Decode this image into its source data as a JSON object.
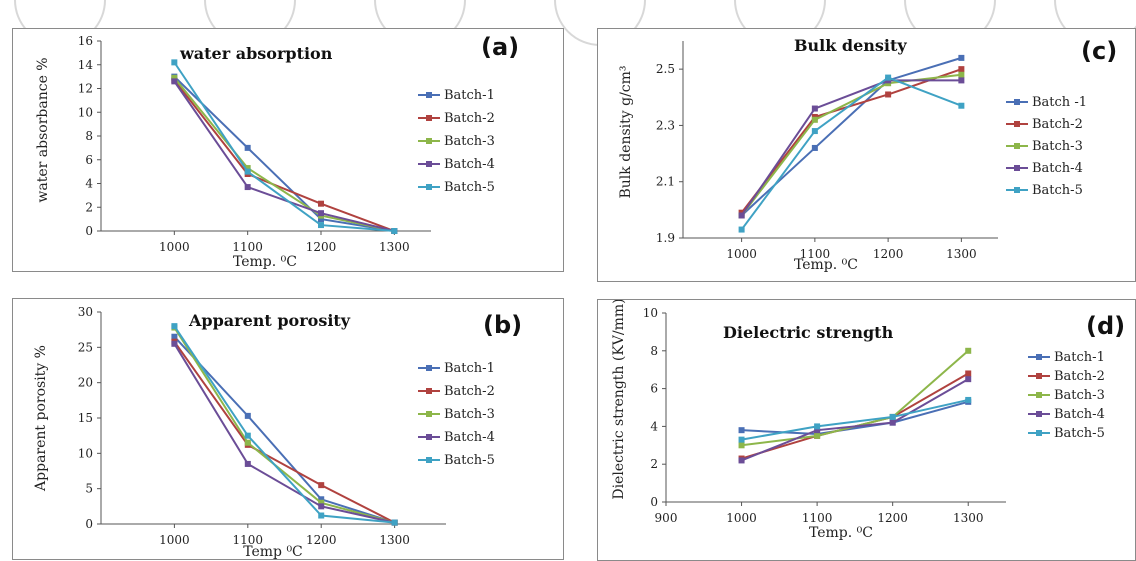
{
  "colors": {
    "batch1": "#4a6fb5",
    "batch2": "#b0423f",
    "batch3": "#8db64a",
    "batch4": "#6b4d97",
    "batch5": "#3fa2c4",
    "axis": "#555555",
    "frame": "#8a8a8a"
  },
  "chart_data": [
    {
      "id": "a",
      "type": "line",
      "panel_label": "(a)",
      "title": "water absorption",
      "xlabel": "Temp.  ⁰C",
      "ylabel": "water absorbance %",
      "x": [
        1000,
        1100,
        1200,
        1300
      ],
      "xticks": [
        1000,
        1100,
        1200,
        1300
      ],
      "xlim": [
        900,
        1350
      ],
      "ylim": [
        0,
        16
      ],
      "yticks": [
        0,
        2,
        4,
        6,
        8,
        10,
        12,
        14,
        16
      ],
      "legend_position": "right",
      "series": [
        {
          "name": "Batch-1",
          "color_key": "batch1",
          "values": [
            13.0,
            7.0,
            1.0,
            0.0
          ]
        },
        {
          "name": "Batch-2",
          "color_key": "batch2",
          "values": [
            12.7,
            4.8,
            2.3,
            0.0
          ]
        },
        {
          "name": "Batch-3",
          "color_key": "batch3",
          "values": [
            12.9,
            5.3,
            1.3,
            0.0
          ]
        },
        {
          "name": "Batch-4",
          "color_key": "batch4",
          "values": [
            12.6,
            3.7,
            1.5,
            0.0
          ]
        },
        {
          "name": "Batch-5",
          "color_key": "batch5",
          "values": [
            14.2,
            5.0,
            0.5,
            0.0
          ]
        }
      ]
    },
    {
      "id": "b",
      "type": "line",
      "panel_label": "(b)",
      "title": "Apparent porosity",
      "xlabel": "Temp ⁰C",
      "ylabel": "Apparent porosity %",
      "x": [
        1000,
        1100,
        1200,
        1300
      ],
      "xticks": [
        1000,
        1100,
        1200,
        1300
      ],
      "xlim": [
        900,
        1370
      ],
      "ylim": [
        0,
        30
      ],
      "yticks": [
        0,
        5,
        10,
        15,
        20,
        25,
        30
      ],
      "legend_position": "right",
      "series": [
        {
          "name": "Batch-1",
          "color_key": "batch1",
          "values": [
            26.5,
            15.3,
            3.5,
            0.2
          ]
        },
        {
          "name": "Batch-2",
          "color_key": "batch2",
          "values": [
            25.8,
            11.2,
            5.5,
            0.2
          ]
        },
        {
          "name": "Batch-3",
          "color_key": "batch3",
          "values": [
            27.8,
            11.5,
            3.0,
            0.2
          ]
        },
        {
          "name": "Batch-4",
          "color_key": "batch4",
          "values": [
            25.5,
            8.5,
            2.5,
            0.2
          ]
        },
        {
          "name": "Batch-5",
          "color_key": "batch5",
          "values": [
            28.0,
            12.5,
            1.2,
            0.2
          ]
        }
      ]
    },
    {
      "id": "c",
      "type": "line",
      "panel_label": "(c)",
      "title": "Bulk density",
      "xlabel": "Temp.  ⁰C",
      "ylabel": "Bulk density g/cm³",
      "x": [
        1000,
        1100,
        1200,
        1300
      ],
      "xticks": [
        1000,
        1100,
        1200,
        1300
      ],
      "xlim": [
        920,
        1350
      ],
      "ylim": [
        1.9,
        2.6
      ],
      "yticks": [
        1.9,
        2.1,
        2.3,
        2.5
      ],
      "legend_position": "right",
      "series": [
        {
          "name": "Batch -1",
          "color_key": "batch1",
          "values": [
            1.98,
            2.22,
            2.46,
            2.54
          ]
        },
        {
          "name": "Batch-2",
          "color_key": "batch2",
          "values": [
            1.99,
            2.33,
            2.41,
            2.5
          ]
        },
        {
          "name": "Batch-3",
          "color_key": "batch3",
          "values": [
            1.98,
            2.32,
            2.45,
            2.48
          ]
        },
        {
          "name": "Batch-4",
          "color_key": "batch4",
          "values": [
            1.98,
            2.36,
            2.46,
            2.46
          ]
        },
        {
          "name": "Batch-5",
          "color_key": "batch5",
          "values": [
            1.93,
            2.28,
            2.47,
            2.37
          ]
        }
      ]
    },
    {
      "id": "d",
      "type": "line",
      "panel_label": "(d)",
      "title": "Dielectric strength",
      "xlabel": "Temp.  ⁰C",
      "ylabel": "Dielectric strength (KV/mm)",
      "x": [
        1000,
        1100,
        1200,
        1300
      ],
      "xticks": [
        900,
        1000,
        1100,
        1200,
        1300
      ],
      "xlim": [
        900,
        1350
      ],
      "ylim": [
        0,
        10
      ],
      "yticks": [
        0,
        2,
        4,
        6,
        8,
        10
      ],
      "legend_position": "right",
      "series": [
        {
          "name": "Batch-1",
          "color_key": "batch1",
          "values": [
            3.8,
            3.6,
            4.2,
            5.3
          ]
        },
        {
          "name": "Batch-2",
          "color_key": "batch2",
          "values": [
            2.3,
            3.5,
            4.5,
            6.8
          ]
        },
        {
          "name": "Batch-3",
          "color_key": "batch3",
          "values": [
            3.0,
            3.5,
            4.5,
            8.0
          ]
        },
        {
          "name": "Batch-4",
          "color_key": "batch4",
          "values": [
            2.2,
            3.8,
            4.2,
            6.5
          ]
        },
        {
          "name": "Batch-5",
          "color_key": "batch5",
          "values": [
            3.3,
            4.0,
            4.5,
            5.4
          ]
        }
      ]
    }
  ]
}
